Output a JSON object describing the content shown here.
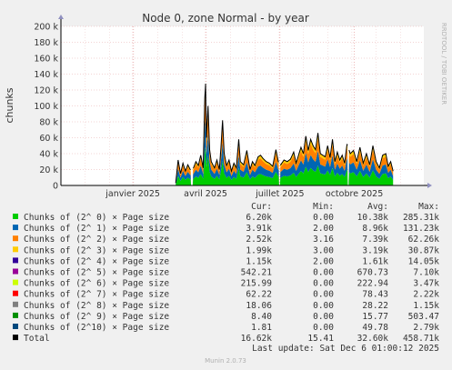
{
  "chart_data": {
    "type": "area",
    "title": "Node 0, zone Normal - by year",
    "ylabel": "chunks",
    "side_label": "RRDTOOL / TOBI OETIKER",
    "y_ticks": [
      "0",
      "20 k",
      "40 k",
      "60 k",
      "80 k",
      "100 k",
      "120 k",
      "140 k",
      "160 k",
      "180 k",
      "200 k"
    ],
    "y_tick_values": [
      0,
      20000,
      40000,
      60000,
      80000,
      100000,
      120000,
      140000,
      160000,
      180000,
      200000
    ],
    "ylim": [
      0,
      200000
    ],
    "x_ticks": [
      "janvier 2025",
      "avril 2025",
      "juillet 2025",
      "octobre 2025"
    ],
    "x_tick_days": [
      89,
      179,
      271,
      363
    ],
    "xlim_days": [
      0,
      449
    ],
    "data_start_day": 142,
    "gap_days": [
      [
        161,
        163
      ],
      [
        270,
        271
      ],
      [
        355,
        356
      ]
    ],
    "stack_order": [
      "Chunks of (2^ 0) × Page size",
      "Chunks of (2^ 1) × Page size",
      "Chunks of (2^ 2) × Page size",
      "Chunks of (2^ 3) × Page size"
    ],
    "total_profile": [
      [
        142,
        3000
      ],
      [
        145,
        32000
      ],
      [
        148,
        15000
      ],
      [
        151,
        28000
      ],
      [
        154,
        18000
      ],
      [
        157,
        26000
      ],
      [
        160,
        20000
      ],
      [
        164,
        22000
      ],
      [
        167,
        30000
      ],
      [
        170,
        25000
      ],
      [
        173,
        38000
      ],
      [
        176,
        22000
      ],
      [
        178,
        110000
      ],
      [
        179,
        128000
      ],
      [
        180,
        60000
      ],
      [
        182,
        100000
      ],
      [
        184,
        45000
      ],
      [
        186,
        30000
      ],
      [
        190,
        22000
      ],
      [
        193,
        32000
      ],
      [
        196,
        20000
      ],
      [
        198,
        48000
      ],
      [
        200,
        82000
      ],
      [
        202,
        40000
      ],
      [
        205,
        25000
      ],
      [
        208,
        32000
      ],
      [
        211,
        18000
      ],
      [
        214,
        28000
      ],
      [
        217,
        22000
      ],
      [
        220,
        58000
      ],
      [
        222,
        30000
      ],
      [
        226,
        26000
      ],
      [
        230,
        44000
      ],
      [
        234,
        20000
      ],
      [
        237,
        30000
      ],
      [
        240,
        25000
      ],
      [
        244,
        36000
      ],
      [
        247,
        38000
      ],
      [
        250,
        34000
      ],
      [
        254,
        30000
      ],
      [
        258,
        28000
      ],
      [
        262,
        24000
      ],
      [
        266,
        45000
      ],
      [
        269,
        30000
      ],
      [
        272,
        26000
      ],
      [
        276,
        32000
      ],
      [
        280,
        30000
      ],
      [
        284,
        33000
      ],
      [
        288,
        42000
      ],
      [
        291,
        28000
      ],
      [
        294,
        38000
      ],
      [
        297,
        48000
      ],
      [
        300,
        40000
      ],
      [
        303,
        62000
      ],
      [
        306,
        44000
      ],
      [
        309,
        58000
      ],
      [
        312,
        50000
      ],
      [
        315,
        45000
      ],
      [
        318,
        66000
      ],
      [
        321,
        40000
      ],
      [
        324,
        38000
      ],
      [
        327,
        36000
      ],
      [
        330,
        50000
      ],
      [
        333,
        35000
      ],
      [
        336,
        58000
      ],
      [
        339,
        30000
      ],
      [
        342,
        42000
      ],
      [
        345,
        32000
      ],
      [
        348,
        38000
      ],
      [
        351,
        28000
      ],
      [
        354,
        52000
      ],
      [
        358,
        40000
      ],
      [
        362,
        44000
      ],
      [
        366,
        30000
      ],
      [
        370,
        48000
      ],
      [
        374,
        28000
      ],
      [
        378,
        40000
      ],
      [
        382,
        26000
      ],
      [
        386,
        50000
      ],
      [
        390,
        30000
      ],
      [
        394,
        22000
      ],
      [
        398,
        38000
      ],
      [
        402,
        40000
      ],
      [
        405,
        24000
      ],
      [
        408,
        30000
      ],
      [
        411,
        18000
      ]
    ],
    "series": [
      {
        "name": "Chunks of (2^ 0) × Page size",
        "color": "#00cc00",
        "cur": "6.20k",
        "min": "0.00",
        "avg": "10.38k",
        "max": "285.31k"
      },
      {
        "name": "Chunks of (2^ 1) × Page size",
        "color": "#0066b3",
        "cur": "3.91k",
        "min": "2.00",
        "avg": "8.96k",
        "max": "131.23k"
      },
      {
        "name": "Chunks of (2^ 2) × Page size",
        "color": "#ff8000",
        "cur": "2.52k",
        "min": "3.16",
        "avg": "7.39k",
        "max": "62.26k"
      },
      {
        "name": "Chunks of (2^ 3) × Page size",
        "color": "#ffcc00",
        "cur": "1.99k",
        "min": "3.00",
        "avg": "3.19k",
        "max": "30.87k"
      },
      {
        "name": "Chunks of (2^ 4) × Page size",
        "color": "#330099",
        "cur": "1.15k",
        "min": "2.00",
        "avg": "1.61k",
        "max": "14.05k"
      },
      {
        "name": "Chunks of (2^ 5) × Page size",
        "color": "#990099",
        "cur": "542.21",
        "min": "0.00",
        "avg": "670.73",
        "max": "7.10k"
      },
      {
        "name": "Chunks of (2^ 6) × Page size",
        "color": "#ccff00",
        "cur": "215.99",
        "min": "0.00",
        "avg": "222.94",
        "max": "3.47k"
      },
      {
        "name": "Chunks of (2^ 7) × Page size",
        "color": "#ff0000",
        "cur": "62.22",
        "min": "0.00",
        "avg": "78.43",
        "max": "2.22k"
      },
      {
        "name": "Chunks of (2^ 8) × Page size",
        "color": "#808080",
        "cur": "18.06",
        "min": "0.00",
        "avg": "28.22",
        "max": "1.15k"
      },
      {
        "name": "Chunks of (2^ 9) × Page size",
        "color": "#008f00",
        "cur": "8.40",
        "min": "0.00",
        "avg": "15.77",
        "max": "503.47"
      },
      {
        "name": "Chunks of (2^10) × Page size",
        "color": "#00487d",
        "cur": "1.81",
        "min": "0.00",
        "avg": "49.78",
        "max": "2.79k"
      },
      {
        "name": "Total",
        "color": "#000000",
        "cur": "16.62k",
        "min": "15.41",
        "avg": "32.60k",
        "max": "458.71k"
      }
    ],
    "legend_headers": {
      "cur": "Cur:",
      "min": "Min:",
      "avg": "Avg:",
      "max": "Max:"
    },
    "last_update": "Last update: Sat Dec  6 01:00:12 2025",
    "footer": "Munin 2.0.73"
  }
}
